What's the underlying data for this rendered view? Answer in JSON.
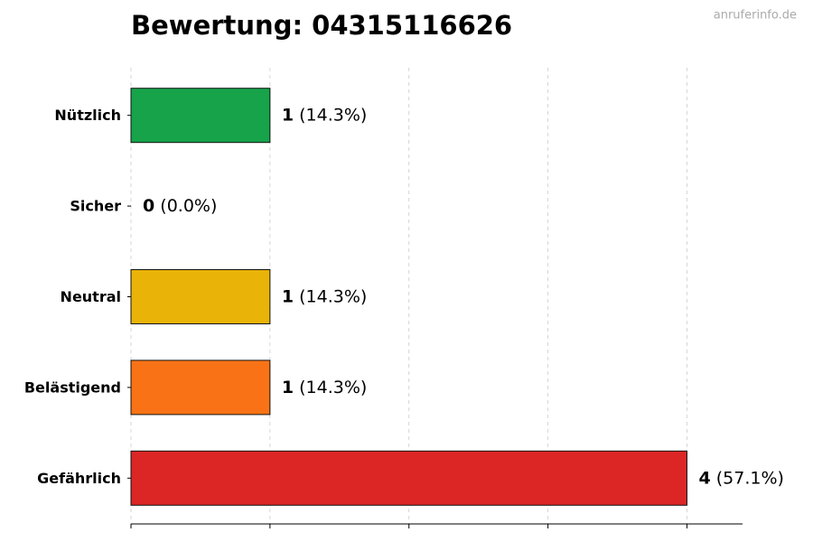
{
  "chart_data": {
    "type": "barh",
    "title": "Bewertung: 04315116626",
    "watermark": "anruferinfo.de",
    "categories": [
      "Nützlich",
      "Sicher",
      "Neutral",
      "Belästigend",
      "Gefährlich"
    ],
    "values": [
      1,
      0,
      1,
      1,
      4
    ],
    "percent_labels": [
      "(14.3%)",
      "(0.0%)",
      "(14.3%)",
      "(14.3%)",
      "(57.1%)"
    ],
    "colors": [
      "#16a34a",
      "#22c55e",
      "#eab308",
      "#f97316",
      "#dc2626"
    ],
    "xlim": [
      0,
      4.4
    ],
    "xticks": [
      0,
      1,
      2,
      3,
      4
    ],
    "grid": true
  }
}
